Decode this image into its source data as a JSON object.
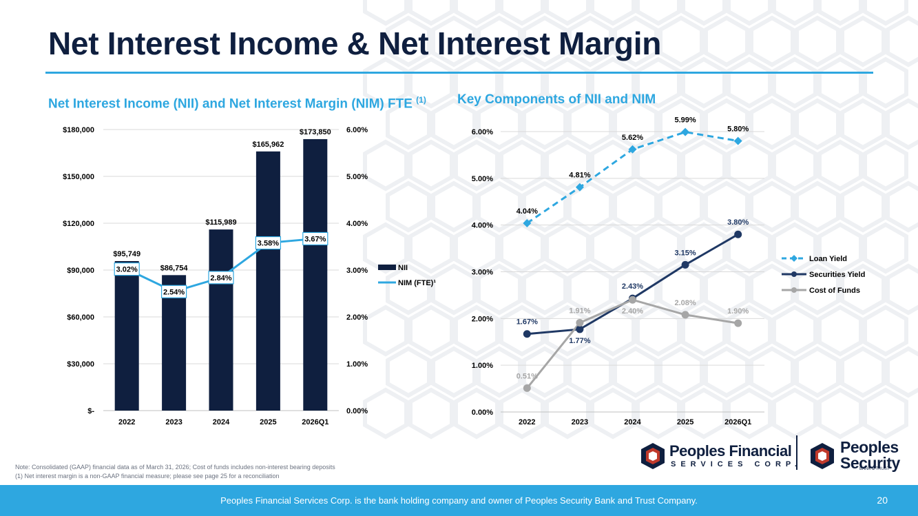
{
  "page": {
    "title": "Net Interest Income & Net Interest Margin",
    "left_subtitle": "Net Interest Income (NII) and Net Interest Margin (NIM) FTE ",
    "left_subtitle_sup": "(1)",
    "right_subtitle": "Key Components of NII and NIM",
    "note_line1": "Note: Consolidated (GAAP) financial data as of March 31, 2026; Cost of funds includes non-interest bearing deposits",
    "note_line2": "(1) Net interest margin is a non-GAAP financial measure; please see page 25 for a reconciliation",
    "footer_text": "Peoples Financial Services Corp. is the bank holding company and owner of Peoples Security Bank and Trust Company.",
    "page_number": "20",
    "logo1_name": "Peoples Financial",
    "logo1_sub": "SERVICES CORP.",
    "logo2_name_line1": "Peoples",
    "logo2_name_line2": "Security",
    "logo2_sub": "BANK & TRUST",
    "colors": {
      "navy": "#0f1f3f",
      "accent": "#2ea7e0",
      "gray": "#a6a6a6",
      "sec": "#1f3864"
    }
  },
  "chart_data": [
    {
      "type": "bar",
      "categories": [
        "2022",
        "2023",
        "2024",
        "2025",
        "2026Q1"
      ],
      "series": [
        {
          "name": "NII",
          "axis": "left",
          "values": [
            95749,
            86754,
            115989,
            165962,
            173850
          ],
          "labels": [
            "$95,749",
            "$86,754",
            "$115,989",
            "$165,962",
            "$173,850"
          ]
        },
        {
          "name": "NIM (FTE)¹",
          "axis": "right",
          "type": "line",
          "values": [
            3.02,
            2.54,
            2.84,
            3.58,
            3.67
          ],
          "labels": [
            "3.02%",
            "2.54%",
            "2.84%",
            "3.58%",
            "3.67%"
          ]
        }
      ],
      "ylim_left": [
        0,
        180000
      ],
      "ylim_right": [
        0,
        6
      ],
      "yticks_left": [
        "$-",
        "$30,000",
        "$60,000",
        "$90,000",
        "$120,000",
        "$150,000",
        "$180,000"
      ],
      "yticks_right": [
        "0.00%",
        "1.00%",
        "2.00%",
        "3.00%",
        "4.00%",
        "5.00%",
        "6.00%"
      ],
      "grid": true,
      "legend": "right"
    },
    {
      "type": "line",
      "categories": [
        "2022",
        "2023",
        "2024",
        "2025",
        "2026Q1"
      ],
      "series": [
        {
          "name": "Loan Yield",
          "style": "dashed",
          "values": [
            4.04,
            4.81,
            5.62,
            5.99,
            5.8
          ],
          "labels": [
            "4.04%",
            "4.81%",
            "5.62%",
            "5.99%",
            "5.80%"
          ]
        },
        {
          "name": "Securities Yield",
          "style": "solid",
          "values": [
            1.67,
            1.77,
            2.43,
            3.15,
            3.8
          ],
          "labels": [
            "1.67%",
            "1.77%",
            "2.43%",
            "3.15%",
            "3.80%"
          ]
        },
        {
          "name": "Cost of Funds",
          "style": "solid",
          "values": [
            0.51,
            1.91,
            2.4,
            2.08,
            1.9
          ],
          "labels": [
            "0.51%",
            "1.91%",
            "2.40%",
            "2.08%",
            "1.90%"
          ]
        }
      ],
      "ylim": [
        0,
        6
      ],
      "yticks": [
        "0.00%",
        "1.00%",
        "2.00%",
        "3.00%",
        "4.00%",
        "5.00%",
        "6.00%"
      ],
      "grid": true,
      "legend": "right"
    }
  ]
}
